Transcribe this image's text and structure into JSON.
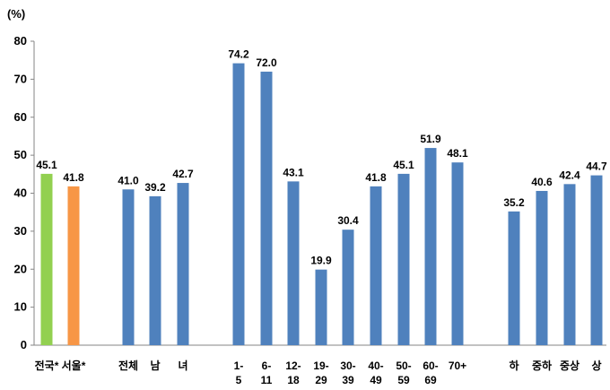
{
  "chart_data": {
    "type": "bar",
    "unit_label": "(%)",
    "ylim": [
      0,
      80
    ],
    "yticks": [
      0,
      10,
      20,
      30,
      40,
      50,
      60,
      70,
      80
    ],
    "grid": false,
    "categories": [
      [
        "전국*"
      ],
      [
        "서울*"
      ],
      [
        "전체"
      ],
      [
        "남"
      ],
      [
        "녀"
      ],
      [
        "1-",
        "5"
      ],
      [
        "6-",
        "11"
      ],
      [
        "12-",
        "18"
      ],
      [
        "19-",
        "29"
      ],
      [
        "30-",
        "39"
      ],
      [
        "40-",
        "49"
      ],
      [
        "50-",
        "59"
      ],
      [
        "60-",
        "69"
      ],
      [
        "70+"
      ],
      [
        "하"
      ],
      [
        "중하"
      ],
      [
        "중상"
      ],
      [
        "상"
      ]
    ],
    "values": [
      45.1,
      41.8,
      41.0,
      39.2,
      42.7,
      74.2,
      72.0,
      43.1,
      19.9,
      30.4,
      41.8,
      45.1,
      51.9,
      48.1,
      35.2,
      40.6,
      42.4,
      44.7
    ],
    "value_labels": [
      "45.1",
      "41.8",
      "41.0",
      "39.2",
      "42.7",
      "74.2",
      "72.0",
      "43.1",
      "19.9",
      "30.4",
      "41.8",
      "45.1",
      "51.9",
      "48.1",
      "35.2",
      "40.6",
      "42.4",
      "44.7"
    ],
    "bar_colors": [
      "#92D050",
      "#F79646",
      "#4F81BD",
      "#4F81BD",
      "#4F81BD",
      "#4F81BD",
      "#4F81BD",
      "#4F81BD",
      "#4F81BD",
      "#4F81BD",
      "#4F81BD",
      "#4F81BD",
      "#4F81BD",
      "#4F81BD",
      "#4F81BD",
      "#4F81BD",
      "#4F81BD",
      "#4F81BD"
    ]
  }
}
